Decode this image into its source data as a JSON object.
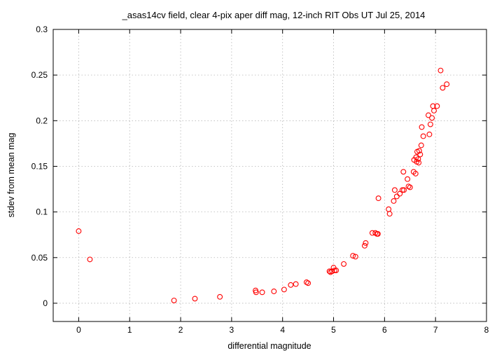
{
  "chart_data": {
    "type": "scatter",
    "title": "_asas14cv field, clear 4-pix aper diff mag,  12-inch RIT Obs UT Jul 25, 2014",
    "xlabel": "differential magnitude",
    "ylabel": "stdev from mean mag",
    "xlim": [
      -0.5,
      8
    ],
    "ylim": [
      -0.02,
      0.3
    ],
    "xticks": [
      "0",
      "1",
      "2",
      "3",
      "4",
      "5",
      "6",
      "7",
      "8"
    ],
    "yticks": [
      "0",
      "0.05",
      "0.1",
      "0.15",
      "0.2",
      "0.25",
      "0.3"
    ],
    "grid": true,
    "marker": "open-circle",
    "color": "#ff0000",
    "series": [
      {
        "x": [
          0.0,
          0.22,
          1.87,
          2.28,
          2.77,
          3.47,
          3.48,
          3.6,
          3.83,
          4.03,
          4.16,
          4.26,
          4.47,
          4.5,
          4.92,
          4.94,
          4.97,
          5.0,
          5.02,
          5.05,
          5.2,
          5.38,
          5.43,
          5.61,
          5.63,
          5.76,
          5.82,
          5.85,
          5.87,
          5.88,
          6.08,
          6.1,
          6.18,
          6.2,
          6.24,
          6.3,
          6.35,
          6.37,
          6.38,
          6.45,
          6.47,
          6.5,
          6.57,
          6.58,
          6.61,
          6.62,
          6.63,
          6.64,
          6.66,
          6.67,
          6.68,
          6.7,
          6.72,
          6.73,
          6.76,
          6.86,
          6.88,
          6.9,
          6.93,
          6.95,
          6.97,
          7.03,
          7.1,
          7.14,
          7.22
        ],
        "y": [
          0.079,
          0.048,
          0.003,
          0.005,
          0.007,
          0.014,
          0.012,
          0.012,
          0.013,
          0.015,
          0.02,
          0.021,
          0.023,
          0.022,
          0.035,
          0.034,
          0.035,
          0.039,
          0.036,
          0.036,
          0.043,
          0.052,
          0.051,
          0.063,
          0.066,
          0.077,
          0.077,
          0.076,
          0.076,
          0.115,
          0.103,
          0.098,
          0.112,
          0.124,
          0.117,
          0.12,
          0.124,
          0.144,
          0.124,
          0.136,
          0.128,
          0.127,
          0.144,
          0.157,
          0.142,
          0.16,
          0.155,
          0.166,
          0.158,
          0.154,
          0.167,
          0.163,
          0.173,
          0.193,
          0.183,
          0.206,
          0.185,
          0.196,
          0.203,
          0.216,
          0.211,
          0.216,
          0.255,
          0.236,
          0.24
        ]
      }
    ]
  }
}
